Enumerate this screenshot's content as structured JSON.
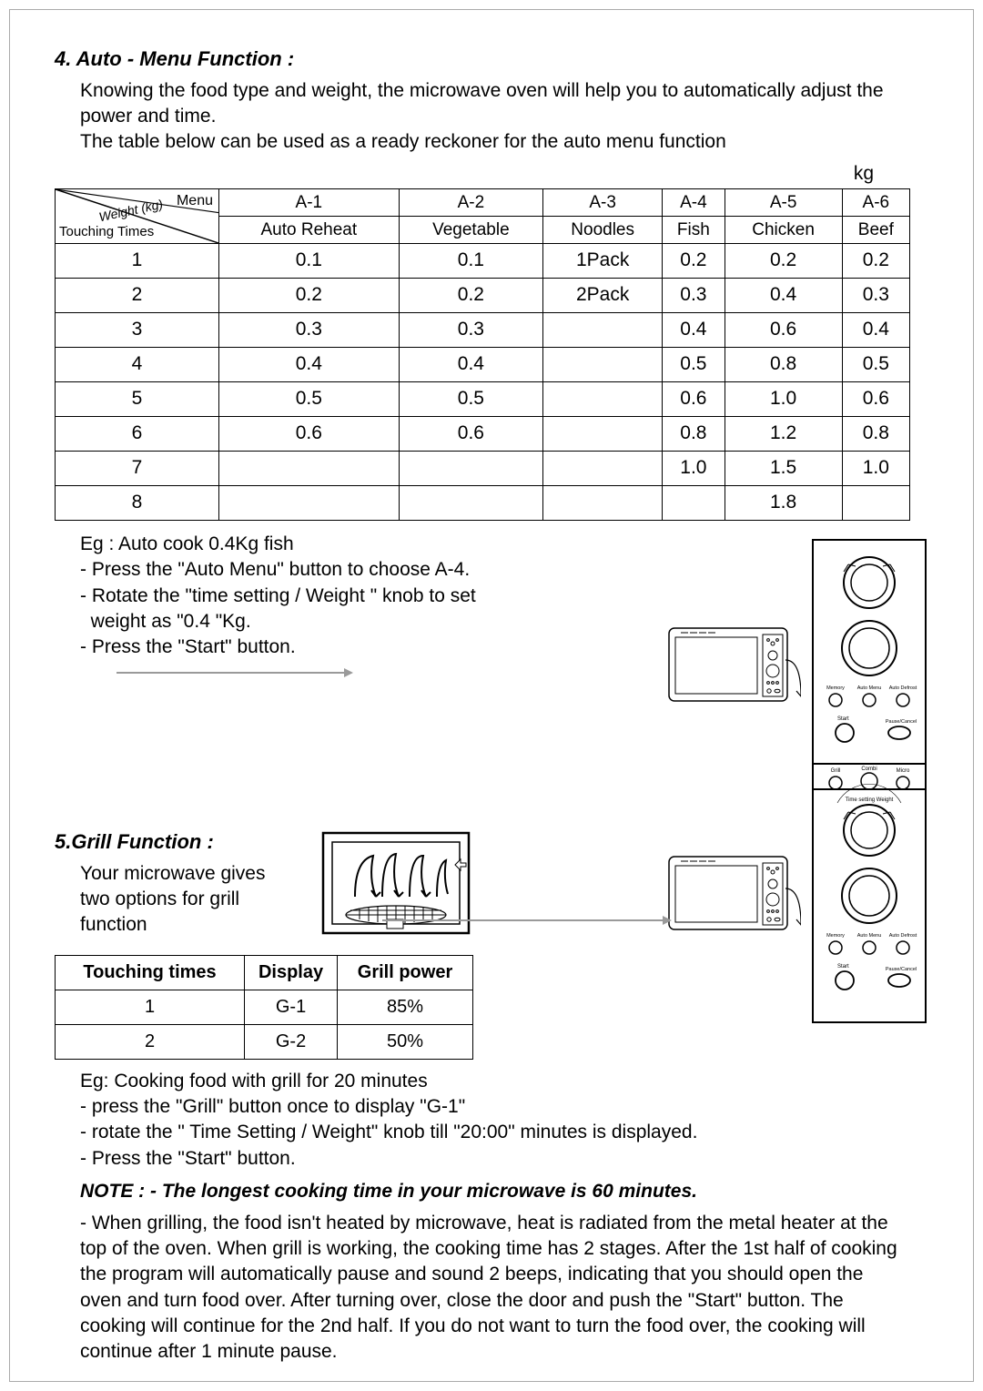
{
  "section4": {
    "heading": "4. Auto - Menu Function :",
    "p1": "Knowing the food type and weight, the microwave oven will help you to automatically adjust the power and time.",
    "p2": "The table below can be used as a ready reckoner for the auto menu function",
    "kg": "kg",
    "diag": {
      "top": "Menu",
      "mid": "Weight (kg)",
      "bot": "Touching Times"
    },
    "cols": [
      "A-1",
      "A-2",
      "A-3",
      "A-4",
      "A-5",
      "A-6"
    ],
    "sub": [
      "Auto Reheat",
      "Vegetable",
      "Noodles",
      "Fish",
      "Chicken",
      "Beef"
    ],
    "rows": [
      [
        "1",
        "0.1",
        "0.1",
        "1Pack",
        "0.2",
        "0.2",
        "0.2"
      ],
      [
        "2",
        "0.2",
        "0.2",
        "2Pack",
        "0.3",
        "0.4",
        "0.3"
      ],
      [
        "3",
        "0.3",
        "0.3",
        "",
        "0.4",
        "0.6",
        "0.4"
      ],
      [
        "4",
        "0.4",
        "0.4",
        "",
        "0.5",
        "0.8",
        "0.5"
      ],
      [
        "5",
        "0.5",
        "0.5",
        "",
        "0.6",
        "1.0",
        "0.6"
      ],
      [
        "6",
        "0.6",
        "0.6",
        "",
        "0.8",
        "1.2",
        "0.8"
      ],
      [
        "7",
        "",
        "",
        "",
        "1.0",
        "1.5",
        "1.0"
      ],
      [
        "8",
        "",
        "",
        "",
        "",
        "1.8",
        ""
      ]
    ],
    "eg_title": "Eg : Auto cook 0.4Kg fish",
    "eg_l1": "- Press the \"Auto Menu\" button to choose A-4.",
    "eg_l2": "- Rotate the \"time setting / Weight \" knob to set",
    "eg_l2b": "  weight as \"0.4 \"Kg.",
    "eg_l3": "- Press the \"Start\" button."
  },
  "section5": {
    "heading": "5.Grill Function :",
    "intro": "Your microwave gives two options for grill function",
    "grill_headers": [
      "Touching times",
      "Display",
      "Grill power"
    ],
    "grill_rows": [
      [
        "1",
        "G-1",
        "85%"
      ],
      [
        "2",
        "G-2",
        "50%"
      ]
    ],
    "eg_title": "Eg: Cooking food with grill for 20 minutes",
    "eg_l1": "- press the \"Grill\" button once to display \"G-1\"",
    "eg_l2": "- rotate the \" Time Setting / Weight\" knob till \"20:00\" minutes is displayed.",
    "eg_l3": "- Press the \"Start\" button.",
    "note": "NOTE :  - The longest cooking time in your microwave is 60 minutes.",
    "para": "- When grilling, the food isn't heated by microwave, heat is radiated from the metal heater at the top of the oven. When grill is working, the cooking time has 2 stages. After the 1st half of cooking the program will automatically pause and sound 2 beeps, indicating that you should open the oven and turn food over. After turning over, close the door and push the \"Start\" button. The cooking will continue for the 2nd half.  If you do not want to turn the food over, the cooking will continue after 1 minute pause."
  },
  "panel_labels": {
    "grill": "Grill",
    "combi": "Combi",
    "micro": "Micro",
    "time": "Time setting  Weight",
    "memory": "Memory",
    "automenu": "Auto Menu",
    "autodef": "Auto Defrost",
    "start": "Start",
    "pause": "Pause/Cancel"
  },
  "colors": {
    "line": "#000000",
    "grey": "#9a9a9a"
  }
}
